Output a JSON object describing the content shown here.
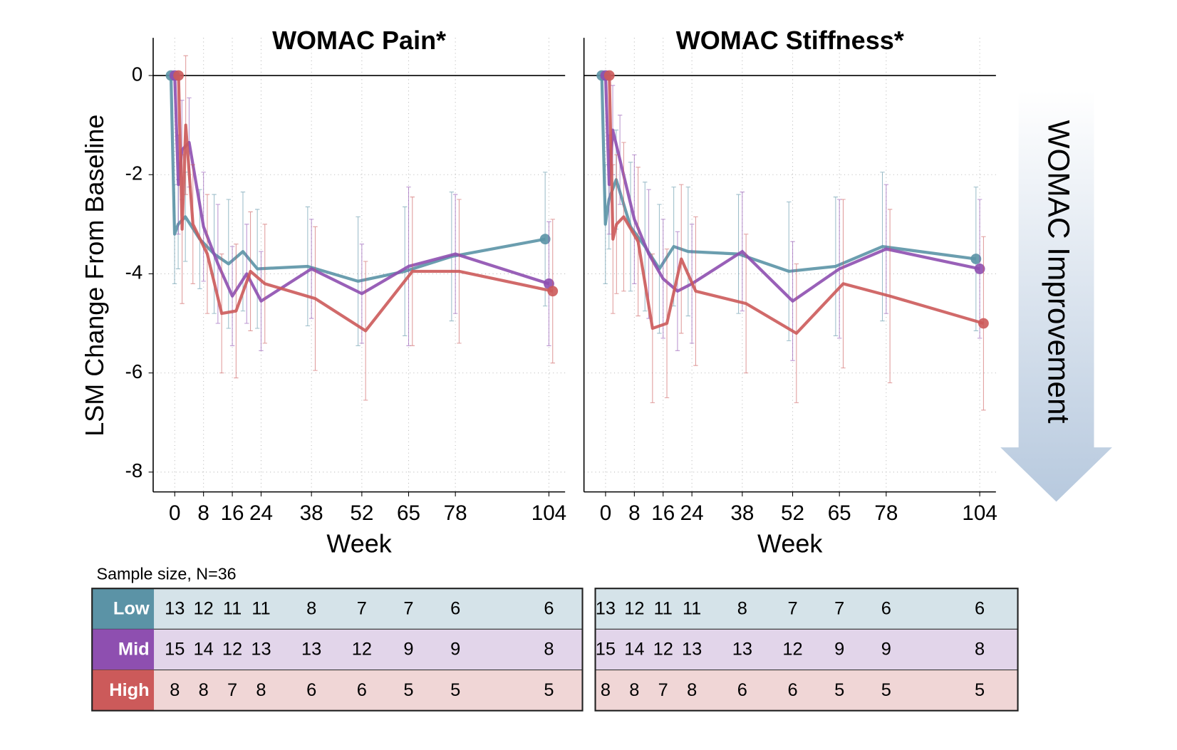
{
  "chart_data": [
    {
      "type": "line",
      "title": "WOMAC Pain*",
      "x_label": "Week",
      "y_label": "LSM Change From Baseline",
      "x": [
        0,
        1,
        2,
        4,
        8,
        12,
        16,
        20,
        24,
        38,
        52,
        65,
        78,
        104
      ],
      "xlim": [
        -6,
        108.5
      ],
      "xticks": [
        0,
        8,
        16,
        24,
        38,
        52,
        65,
        78,
        104
      ],
      "ylim": [
        -8.4,
        0.76
      ],
      "yticks": [
        0,
        -2,
        -4,
        -6,
        -8
      ],
      "grid": true,
      "series": [
        {
          "name": "Low",
          "color": "#5b93a6",
          "values": [
            0,
            -3.2,
            -3.0,
            -2.85,
            -3.3,
            -3.6,
            -3.8,
            -3.55,
            -3.9,
            -3.85,
            -4.15,
            -3.95,
            -3.65,
            -3.3
          ],
          "errors": [
            0,
            1.0,
            0.9,
            0.9,
            1.0,
            1.2,
            1.3,
            1.2,
            1.2,
            1.2,
            1.3,
            1.3,
            1.3,
            1.35
          ]
        },
        {
          "name": "Mid",
          "color": "#8e4fb0",
          "values": [
            0,
            -2.2,
            -1.5,
            -1.35,
            -3.05,
            -3.8,
            -4.45,
            -4.0,
            -4.55,
            -3.9,
            -4.4,
            -3.85,
            -3.6,
            -4.2
          ],
          "errors": [
            0,
            1.0,
            1.0,
            0.9,
            1.1,
            1.2,
            1.0,
            1.0,
            1.0,
            1.0,
            1.0,
            1.6,
            1.2,
            1.25
          ]
        },
        {
          "name": "High",
          "color": "#cc5a5a",
          "values": [
            0,
            -3.1,
            -1.0,
            -3.0,
            -3.6,
            -4.8,
            -4.75,
            -3.95,
            -4.2,
            -4.5,
            -5.15,
            -3.95,
            -3.95,
            -4.35
          ],
          "errors": [
            0,
            1.5,
            1.4,
            1.2,
            1.2,
            1.2,
            1.35,
            1.2,
            1.2,
            1.45,
            1.4,
            1.5,
            1.45,
            1.45
          ]
        }
      ]
    },
    {
      "type": "line",
      "title": "WOMAC Stiffness*",
      "x_label": "Week",
      "x": [
        0,
        1,
        2,
        4,
        8,
        12,
        16,
        20,
        24,
        38,
        52,
        65,
        78,
        104
      ],
      "xlim": [
        -6,
        108.5
      ],
      "xticks": [
        0,
        8,
        16,
        24,
        38,
        52,
        65,
        78,
        104
      ],
      "ylim": [
        -8.4,
        0.76
      ],
      "yticks": [
        0,
        -2,
        -4,
        -6,
        -8
      ],
      "grid": true,
      "series": [
        {
          "name": "Low",
          "color": "#5b93a6",
          "values": [
            0,
            -3.0,
            -2.5,
            -2.1,
            -3.05,
            -3.45,
            -3.9,
            -3.45,
            -3.55,
            -3.6,
            -3.95,
            -3.85,
            -3.45,
            -3.7
          ],
          "errors": [
            0,
            1.2,
            1.0,
            1.0,
            1.3,
            1.3,
            1.3,
            1.2,
            1.3,
            1.2,
            1.4,
            1.4,
            1.5,
            1.45
          ]
        },
        {
          "name": "Mid",
          "color": "#8e4fb0",
          "values": [
            0,
            -2.2,
            -1.1,
            -1.7,
            -2.9,
            -3.6,
            -4.1,
            -4.35,
            -4.2,
            -3.55,
            -4.55,
            -3.9,
            -3.5,
            -3.9
          ],
          "errors": [
            0,
            1.0,
            0.9,
            0.9,
            1.3,
            1.3,
            1.2,
            1.2,
            1.2,
            1.2,
            1.2,
            1.4,
            1.3,
            1.4
          ]
        },
        {
          "name": "High",
          "color": "#cc5a5a",
          "values": [
            0,
            -3.3,
            -3.0,
            -2.85,
            -3.35,
            -5.1,
            -5.0,
            -3.7,
            -4.35,
            -4.6,
            -5.2,
            -4.2,
            -4.45,
            -5.0
          ],
          "errors": [
            0,
            1.5,
            1.4,
            1.5,
            1.5,
            1.5,
            1.5,
            1.5,
            1.5,
            1.4,
            1.4,
            1.7,
            1.75,
            1.75
          ]
        }
      ]
    }
  ],
  "sample_size": {
    "title": "Sample size, N=36",
    "tables": [
      [
        [
          13,
          12,
          11,
          11,
          8,
          7,
          7,
          6,
          6
        ],
        [
          15,
          14,
          12,
          13,
          13,
          12,
          9,
          9,
          8
        ],
        [
          8,
          8,
          7,
          8,
          6,
          6,
          5,
          5,
          5
        ]
      ],
      [
        [
          13,
          12,
          11,
          11,
          8,
          7,
          7,
          6,
          6
        ],
        [
          15,
          14,
          12,
          13,
          13,
          12,
          9,
          9,
          8
        ],
        [
          8,
          8,
          7,
          8,
          6,
          6,
          5,
          5,
          5
        ]
      ]
    ]
  },
  "annotation": "WOMAC Improvement"
}
